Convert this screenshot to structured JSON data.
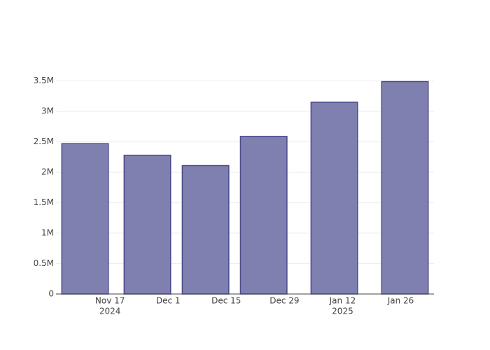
{
  "chart_data": {
    "type": "bar",
    "x": [
      "2024-11-11",
      "2024-11-26",
      "2024-12-10",
      "2024-12-24",
      "2025-01-10",
      "2025-01-27"
    ],
    "values": [
      2470000,
      2280000,
      2110000,
      2590000,
      3150000,
      3490000
    ],
    "color": "#7f7fb0",
    "edge_color": "#4b4b8c",
    "xlim": [
      "2024-11-04",
      "2025-02-03"
    ],
    "xticks": [
      {
        "value": "2024-11-17",
        "label": "Nov 17",
        "sublabel": "2024"
      },
      {
        "value": "2024-12-01",
        "label": "Dec 1"
      },
      {
        "value": "2024-12-15",
        "label": "Dec 15"
      },
      {
        "value": "2024-12-29",
        "label": "Dec 29"
      },
      {
        "value": "2025-01-12",
        "label": "Jan 12",
        "sublabel": "2025"
      },
      {
        "value": "2025-01-26",
        "label": "Jan 26"
      }
    ],
    "ylim": [
      0,
      3680000
    ],
    "yticks": [
      0,
      {
        "value": 500000,
        "label": "0.5M"
      },
      {
        "value": 1000000,
        "label": "1M"
      },
      {
        "value": 1500000,
        "label": "1.5M"
      },
      {
        "value": 2000000,
        "label": "2M"
      },
      {
        "value": 2500000,
        "label": "2.5M"
      },
      {
        "value": 3000000,
        "label": "3M"
      },
      {
        "value": 3500000,
        "label": "3.5M"
      }
    ],
    "grid": true
  }
}
